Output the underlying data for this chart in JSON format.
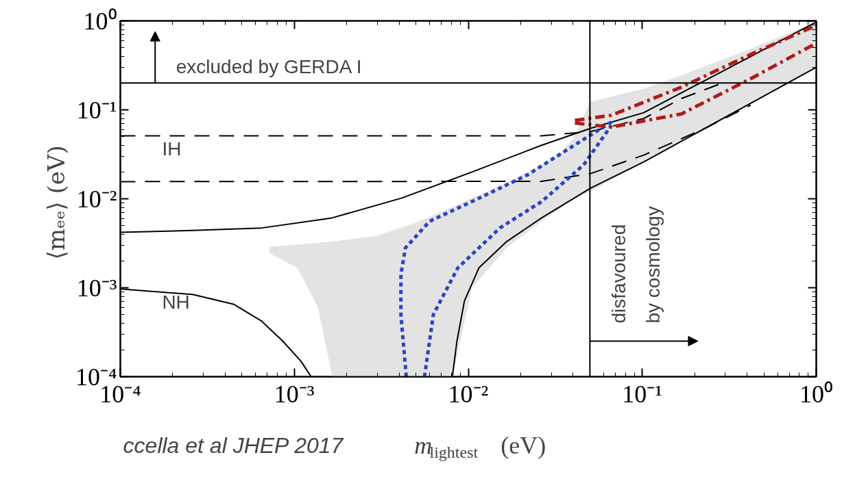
{
  "chart_data": {
    "type": "line",
    "log": "xy",
    "xlim": [
      0.0001,
      1
    ],
    "ylim": [
      0.0001,
      1
    ],
    "xticks": [
      {
        "value": 0.0001,
        "label": "10⁻⁴"
      },
      {
        "value": 0.001,
        "label": "10⁻³"
      },
      {
        "value": 0.01,
        "label": "10⁻²"
      },
      {
        "value": 0.1,
        "label": "10⁻¹"
      },
      {
        "value": 1,
        "label": "10⁰"
      }
    ],
    "yticks": [
      {
        "value": 0.0001,
        "label": "10⁻⁴"
      },
      {
        "value": 0.001,
        "label": "10⁻³"
      },
      {
        "value": 0.01,
        "label": "10⁻²"
      },
      {
        "value": 0.1,
        "label": "10⁻¹"
      },
      {
        "value": 1,
        "label": "10⁰"
      }
    ],
    "xlabel": "m$_{lightest}$  (eV)",
    "ylabel": "⟨mₑₑ⟩  (eV)",
    "grid": false,
    "series": [
      {
        "type": "area",
        "color": "#e3e3e3",
        "x": [
          0.00072,
          0.00104,
          0.00137,
          0.00165,
          0.0029,
          0.005,
          0.0081,
          0.0105,
          0.0166,
          0.0264,
          0.0348,
          0.04,
          0.0505,
          0.102,
          0.168,
          0.42,
          1
        ],
        "values": [
          null,
          null,
          null,
          null,
          null,
          null,
          null,
          null,
          null,
          null,
          null,
          null,
          null,
          null,
          null,
          null,
          null
        ],
        "upper": [
          0.0029,
          0.00305,
          0.0032,
          0.0033,
          0.0038,
          0.0054,
          0.0081,
          0.0102,
          0.0151,
          0.024,
          0.034,
          0.048,
          0.123,
          0.173,
          0.244,
          0.486,
          0.97
        ],
        "lower": [
          0.00244,
          0.00167,
          0.0006,
          0.0001,
          0.0001,
          0.0001,
          0.0001,
          0.001,
          0.0028,
          0.0056,
          0.0081,
          0.0102,
          0.0121,
          0.026,
          0.044,
          0.123,
          0.3
        ]
      },
      {
        "color": "#000000",
        "line_style": "solid",
        "x": [
          0.0001,
          0.00026,
          0.00065,
          0.00165,
          0.00415,
          0.0105,
          0.0264,
          0.0505,
          0.102,
          1
        ],
        "values": [
          0.0042,
          0.0044,
          0.0047,
          0.0061,
          0.0102,
          0.02,
          0.04,
          0.062,
          0.093,
          0.97
        ]
      },
      {
        "color": "#000000",
        "line_style": "solid",
        "x": [
          0.0001,
          0.00026,
          0.00045,
          0.00065,
          0.00086,
          0.00109,
          0.00125
        ],
        "values": [
          0.00097,
          0.00084,
          0.00065,
          0.00042,
          0.00025,
          0.00015,
          0.0001
        ]
      },
      {
        "color": "#000000",
        "line_style": "solid",
        "x": [
          0.0081,
          0.0086,
          0.0095,
          0.0115,
          0.0166,
          0.0264,
          0.0505,
          0.102,
          1
        ],
        "values": [
          0.0001,
          0.00025,
          0.00071,
          0.00167,
          0.0033,
          0.0061,
          0.0132,
          0.026,
          0.3
        ]
      },
      {
        "color": "#000000",
        "line_style": "dashed",
        "x": [
          0.0001,
          0.0264,
          0.0505,
          0.102,
          0.168,
          0.3
        ],
        "values": [
          0.051,
          0.051,
          0.057,
          0.08,
          0.134,
          0.206
        ]
      },
      {
        "color": "#000000",
        "line_style": "dashed",
        "x": [
          0.0001,
          0.0264,
          0.0505,
          0.102,
          0.23,
          0.42
        ],
        "values": [
          0.0156,
          0.0157,
          0.0192,
          0.031,
          0.062,
          0.113
        ]
      },
      {
        "color": "#2a45c0",
        "line_style": "dotted",
        "x": [
          0.0044,
          0.0041,
          0.0041,
          0.00435,
          0.006,
          0.0105,
          0.0219,
          0.0382,
          0.0665
        ],
        "values": [
          0.0001,
          0.0005,
          0.00141,
          0.0028,
          0.0056,
          0.0093,
          0.0186,
          0.037,
          0.073
        ]
      },
      {
        "color": "#2a45c0",
        "line_style": "dotted",
        "x": [
          0.0056,
          0.0063,
          0.0087,
          0.0152,
          0.0264,
          0.046,
          0.0665
        ],
        "values": [
          0.0001,
          0.0005,
          0.00167,
          0.0047,
          0.0093,
          0.024,
          0.067
        ]
      },
      {
        "color": "#b01c1c",
        "line_style": "dashdot",
        "x": [
          0.041,
          0.0665,
          0.168,
          0.42,
          1
        ],
        "values": [
          0.076,
          0.087,
          0.18,
          0.42,
          0.89
        ]
      },
      {
        "color": "#b01c1c",
        "line_style": "dashdot",
        "x": [
          0.041,
          0.0665,
          0.168,
          0.42,
          1
        ],
        "values": [
          0.071,
          0.064,
          0.09,
          0.224,
          0.56
        ]
      }
    ],
    "ref_lines": [
      {
        "axis": "y",
        "value": 0.2,
        "label": "excluded by GERDA I",
        "color": "#000000"
      },
      {
        "axis": "x",
        "value": 0.05,
        "label": "disfavoured by cosmology",
        "color": "#000000"
      }
    ],
    "annotations": [
      "IH",
      "NH",
      "ccella et al JHEP 2017"
    ]
  }
}
